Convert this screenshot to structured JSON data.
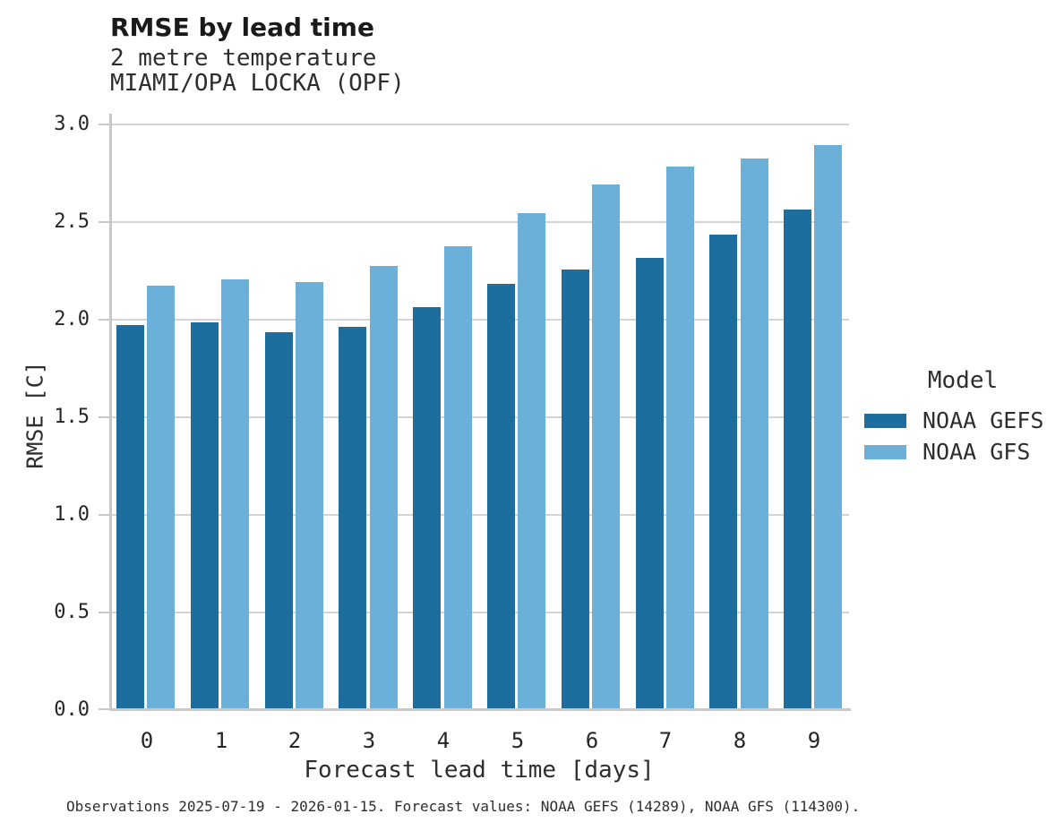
{
  "header": {
    "title": "RMSE by lead time",
    "subtitle_line1": "2 metre temperature",
    "subtitle_line2": "MIAMI/OPA LOCKA (OPF)"
  },
  "chart_data": {
    "type": "bar",
    "title": "RMSE by lead time",
    "subtitle": [
      "2 metre temperature",
      "MIAMI/OPA LOCKA (OPF)"
    ],
    "xlabel": "Forecast lead time [days]",
    "ylabel": "RMSE [C]",
    "categories": [
      "0",
      "1",
      "2",
      "3",
      "4",
      "5",
      "6",
      "7",
      "8",
      "9"
    ],
    "series": [
      {
        "name": "NOAA GEFS",
        "color": "#1d6d9e",
        "values": [
          1.97,
          1.98,
          1.93,
          1.96,
          2.06,
          2.18,
          2.25,
          2.31,
          2.43,
          2.56
        ]
      },
      {
        "name": "NOAA GFS",
        "color": "#6ab0d8",
        "values": [
          2.17,
          2.2,
          2.19,
          2.27,
          2.37,
          2.54,
          2.69,
          2.78,
          2.82,
          2.89
        ]
      }
    ],
    "ylim": [
      0.0,
      3.0
    ],
    "yticks": [
      "0.0",
      "0.5",
      "1.0",
      "1.5",
      "2.0",
      "2.5",
      "3.0"
    ],
    "grid": true,
    "legend_title": "Model",
    "legend_position": "center-right"
  },
  "legend": {
    "title": "Model",
    "items": [
      {
        "label": "NOAA GEFS",
        "color": "#1d6d9e"
      },
      {
        "label": "NOAA GFS",
        "color": "#6ab0d8"
      }
    ]
  },
  "footer": {
    "note": "Observations 2025-07-19 - 2026-01-15. Forecast values: NOAA GEFS (14289), NOAA GFS (114300)."
  },
  "colors": {
    "series_dark": "#1d6d9e",
    "series_light": "#6ab0d8",
    "gridline": "#d5d5d5",
    "spine": "#c9c9c9",
    "title_text": "#1a1a1a",
    "body_text": "#2e2e2e",
    "tick_text": "#262626"
  }
}
